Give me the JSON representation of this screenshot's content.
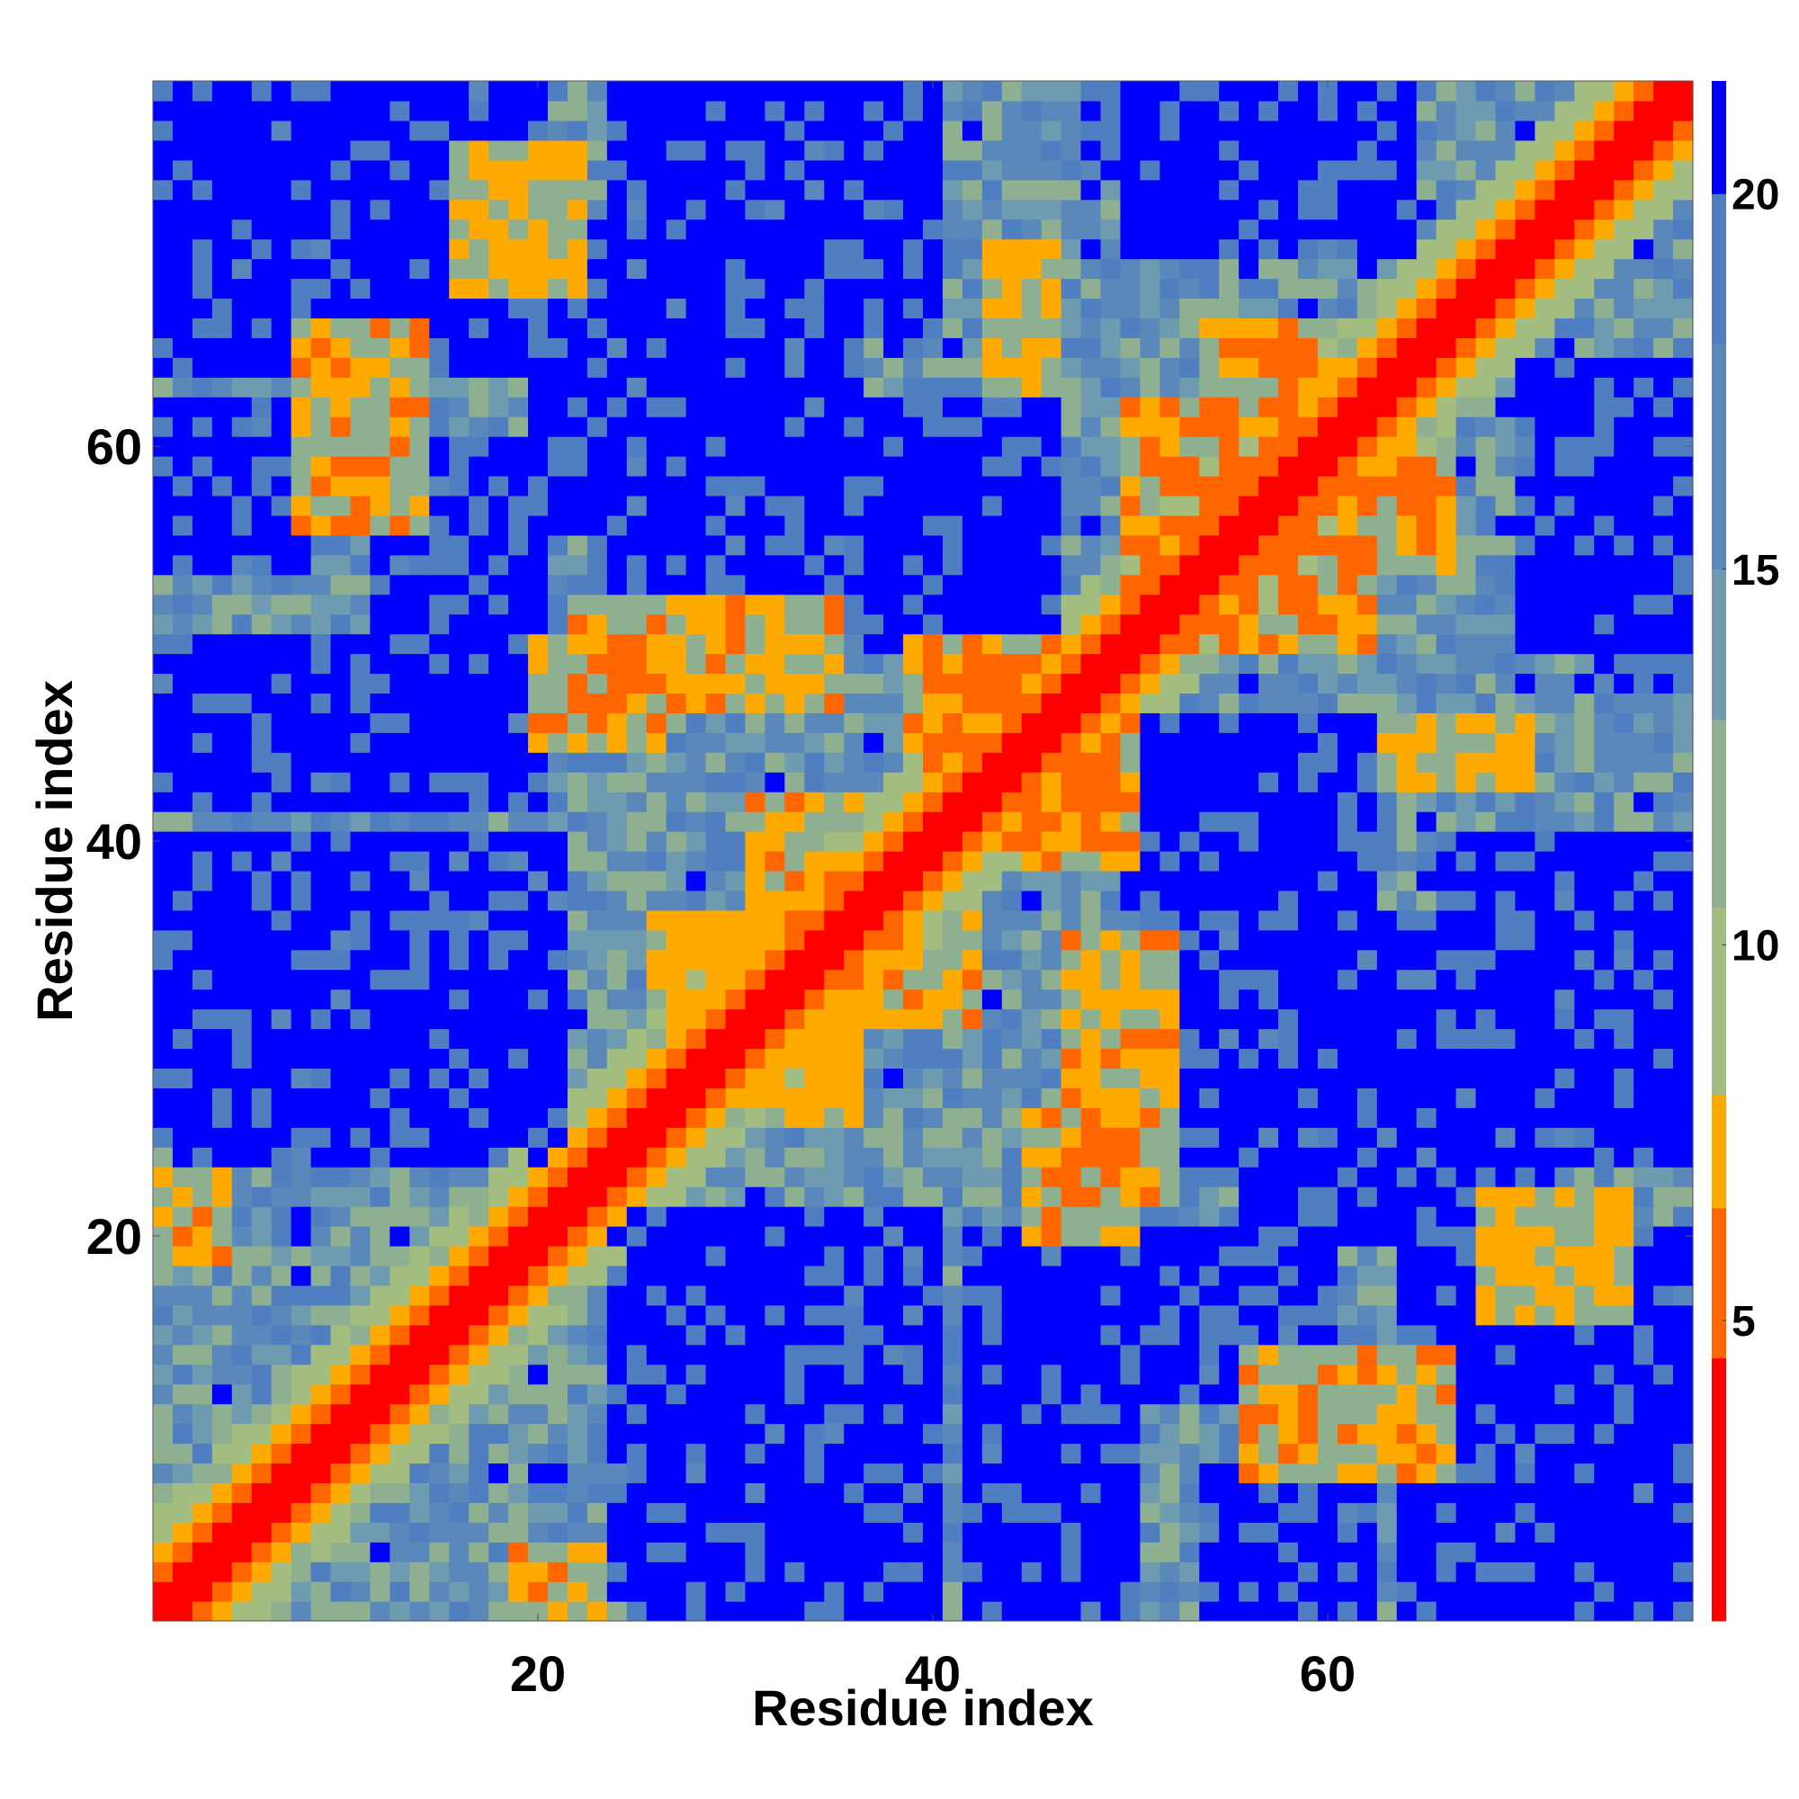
{
  "chart_data": {
    "type": "heatmap",
    "title": "",
    "xlabel": "Residue index",
    "ylabel": "Residue index",
    "n_residues": 78,
    "xlim": [
      1,
      78
    ],
    "ylim": [
      1,
      78
    ],
    "x_ticks": [
      20,
      40,
      60
    ],
    "y_ticks": [
      20,
      40,
      60
    ],
    "colorbar": {
      "ticks": [
        5,
        10,
        15,
        20
      ],
      "range": [
        1,
        21.5
      ],
      "stops": [
        {
          "max": 4.5,
          "color": "#ff0000"
        },
        {
          "max": 6.5,
          "color": "#ff6600"
        },
        {
          "max": 8.0,
          "color": "#ffaa00"
        },
        {
          "max": 10.5,
          "color": "#a3bd80"
        },
        {
          "max": 13.0,
          "color": "#8fb090"
        },
        {
          "max": 15.0,
          "color": "#6f9bb0"
        },
        {
          "max": 18.0,
          "color": "#5a88bb"
        },
        {
          "max": 20.0,
          "color": "#4f7fc0"
        },
        {
          "max": 99,
          "color": "#0000ff"
        }
      ]
    },
    "description": "Symmetric residue-residue distance map (Angstrom); diagonal near 0-4 (red), near-diagonal 5-8 (orange), far pairs >20 (blue).",
    "contact_patches": [
      {
        "i": [
          1,
          4
        ],
        "j": [
          19,
          23
        ],
        "d": 7.2
      },
      {
        "i": [
          8,
          14
        ],
        "j": [
          56,
          66
        ],
        "d": 7.0
      },
      {
        "i": [
          22,
          30
        ],
        "j": [
          47,
          52
        ],
        "d": 6.8
      },
      {
        "i": [
          26,
          36
        ],
        "j": [
          28,
          36
        ],
        "d": 7.5
      },
      {
        "i": [
          36,
          42
        ],
        "j": [
          31,
          36
        ],
        "d": 7.2
      },
      {
        "i": [
          39,
          48
        ],
        "j": [
          44,
          50
        ],
        "d": 6.9
      },
      {
        "i": [
          44,
          50
        ],
        "j": [
          40,
          47
        ],
        "d": 6.9
      },
      {
        "i": [
          45,
          50
        ],
        "j": [
          20,
          26
        ],
        "d": 7.0
      },
      {
        "i": [
          47,
          52
        ],
        "j": [
          27,
          35
        ],
        "d": 7.3
      },
      {
        "i": [
          50,
          58
        ],
        "j": [
          52,
          62
        ],
        "d": 6.8
      },
      {
        "i": [
          60,
          66
        ],
        "j": [
          54,
          60
        ],
        "d": 7.1
      },
      {
        "i": [
          63,
          70
        ],
        "j": [
          43,
          46
        ],
        "d": 7.6
      },
      {
        "i": [
          68,
          75
        ],
        "j": [
          16,
          22
        ],
        "d": 7.6
      }
    ],
    "far_patches": [
      {
        "i": [
          1,
          21
        ],
        "j": [
          25,
          40
        ],
        "d": 22
      },
      {
        "i": [
          25,
          40
        ],
        "j": [
          1,
          21
        ],
        "d": 22
      },
      {
        "i": [
          24,
          40
        ],
        "j": [
          2,
          20
        ],
        "d": 22
      },
      {
        "i": [
          24,
          30
        ],
        "j": [
          68,
          78
        ],
        "d": 22
      },
      {
        "i": [
          50,
          64
        ],
        "j": [
          70,
          78
        ],
        "d": 22
      },
      {
        "i": [
          70,
          78
        ],
        "j": [
          50,
          64
        ],
        "d": 22
      },
      {
        "i": [
          74,
          78
        ],
        "j": [
          48,
          64
        ],
        "d": 22
      },
      {
        "i": [
          1,
          8
        ],
        "j": [
          54,
          62
        ],
        "d": 22
      },
      {
        "i": [
          54,
          62
        ],
        "j": [
          1,
          8
        ],
        "d": 22
      },
      {
        "i": [
          50,
          62
        ],
        "j": [
          34,
          46
        ],
        "d": 22
      },
      {
        "i": [
          64,
          78
        ],
        "j": [
          4,
          20
        ],
        "d": 21.5
      },
      {
        "i": [
          1,
          8
        ],
        "j": [
          64,
          78
        ],
        "d": 22
      },
      {
        "i": [
          12,
          20
        ],
        "j": [
          50,
          60
        ],
        "d": 21.5
      },
      {
        "i": [
          56,
          70
        ],
        "j": [
          20,
          34
        ],
        "d": 21.5
      },
      {
        "i": [
          66,
          78
        ],
        "j": [
          30,
          40
        ],
        "d": 21.5
      },
      {
        "i": [
          30,
          40
        ],
        "j": [
          66,
          78
        ],
        "d": 21.5
      },
      {
        "i": [
          1,
          20
        ],
        "j": [
          42,
          50
        ],
        "d": 21
      },
      {
        "i": [
          42,
          50
        ],
        "j": [
          1,
          20
        ],
        "d": 21
      },
      {
        "i": [
          24,
          36
        ],
        "j": [
          52,
          66
        ],
        "d": 21
      },
      {
        "i": [
          52,
          66
        ],
        "j": [
          24,
          36
        ],
        "d": 21
      }
    ]
  }
}
